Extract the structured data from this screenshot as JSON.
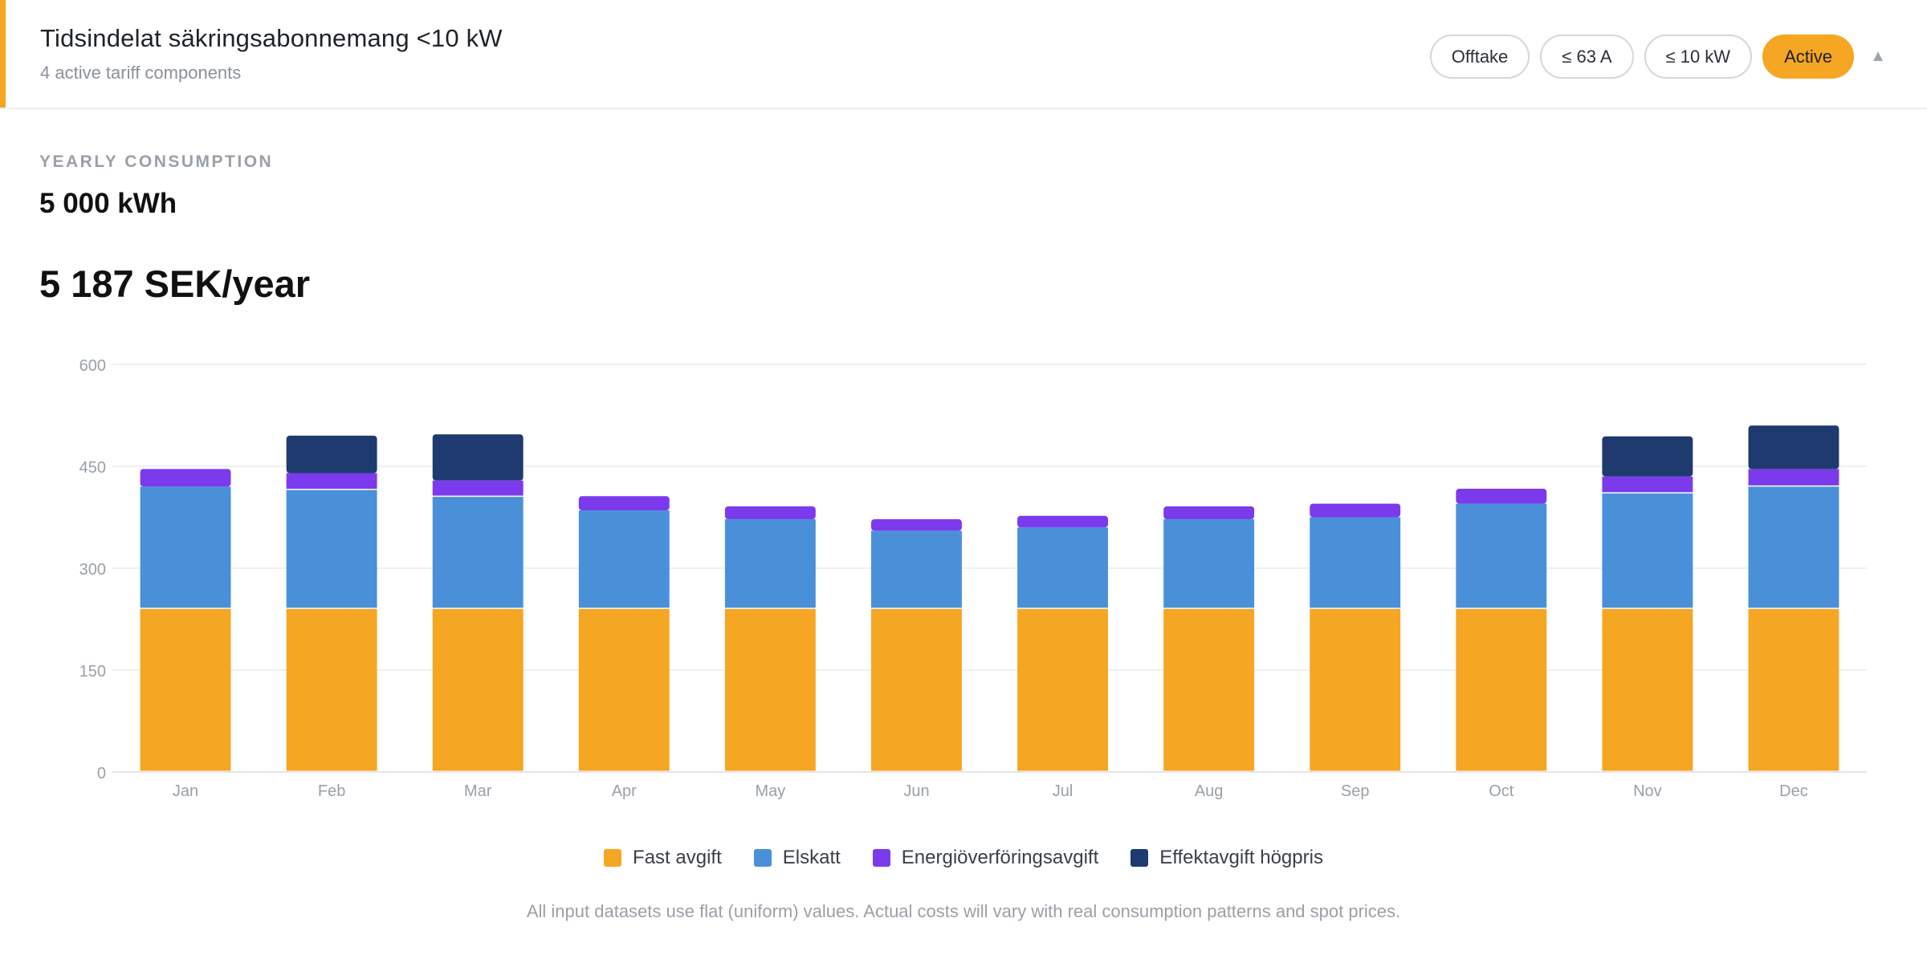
{
  "header": {
    "title": "Tidsindelat säkringsabonnemang <10 kW",
    "subtitle": "4 active tariff components",
    "chips": [
      "Offtake",
      "≤ 63 A",
      "≤ 10 kW"
    ],
    "status": "Active",
    "collapse_icon": "triangle-up-icon"
  },
  "summary": {
    "consumption_label": "YEARLY CONSUMPTION",
    "consumption_value": "5 000 kWh",
    "yearly_cost": "5 187 SEK/year"
  },
  "chart_data": {
    "type": "bar",
    "stacked": true,
    "categories": [
      "Jan",
      "Feb",
      "Mar",
      "Apr",
      "May",
      "Jun",
      "Jul",
      "Aug",
      "Sep",
      "Oct",
      "Nov",
      "Dec"
    ],
    "series": [
      {
        "name": "Fast avgift",
        "color": "#f5a623",
        "values": [
          240,
          240,
          240,
          240,
          240,
          240,
          240,
          240,
          240,
          240,
          240,
          240
        ]
      },
      {
        "name": "Elskatt",
        "color": "#4a90d9",
        "values": [
          180,
          175,
          165,
          145,
          132,
          115,
          120,
          132,
          135,
          155,
          170,
          180
        ]
      },
      {
        "name": "Energiöverföringsavgift",
        "color": "#7c3aed",
        "values": [
          26,
          25,
          24,
          21,
          19,
          17,
          17,
          19,
          20,
          22,
          25,
          26
        ]
      },
      {
        "name": "Effektavgift högpris",
        "color": "#1e3a6e",
        "values": [
          0,
          55,
          68,
          0,
          0,
          0,
          0,
          0,
          0,
          0,
          59,
          64
        ]
      }
    ],
    "y_ticks": [
      0,
      150,
      300,
      450,
      600
    ],
    "ylim": [
      0,
      600
    ],
    "grid": true,
    "legend_position": "bottom"
  },
  "footnote": "All input datasets use flat (uniform) values. Actual costs will vary with real consumption patterns and spot prices."
}
